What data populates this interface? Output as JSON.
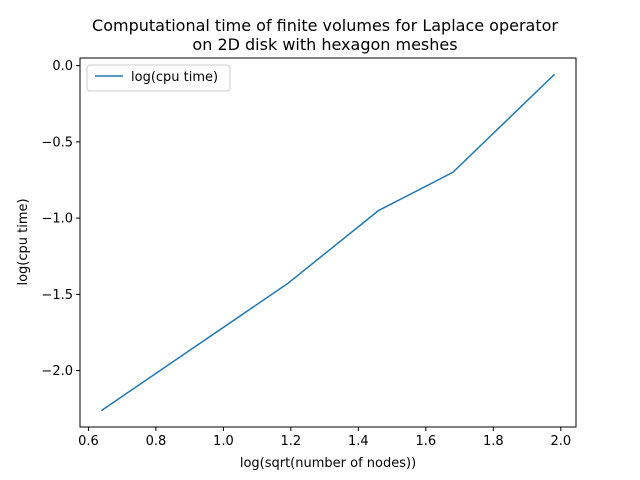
{
  "chart_data": {
    "type": "line",
    "title_line1": "Computational time of finite volumes for Laplace operator",
    "title_line2": "on 2D disk with hexagon meshes",
    "xlabel": "log(sqrt(number of nodes))",
    "ylabel": "log(cpu time)",
    "xlim": [
      0.6,
      2.0
    ],
    "ylim": [
      -2.5,
      0.0
    ],
    "xticks": [
      0.6,
      0.8,
      1.0,
      1.2,
      1.4,
      1.6,
      1.8,
      2.0
    ],
    "xtick_labels": [
      "0.6",
      "0.8",
      "1.0",
      "1.2",
      "1.4",
      "1.6",
      "1.8",
      "2.0"
    ],
    "yticks": [
      -2.0,
      -1.5,
      -1.0,
      -0.5,
      0.0
    ],
    "ytick_labels": [
      "−2.0",
      "−1.5",
      "−1.0",
      "−0.5",
      "0.0"
    ],
    "grid": false,
    "legend_position": "upper-left",
    "series": [
      {
        "name": "log(cpu time)",
        "color": "#1f77b4",
        "x": [
          0.64,
          1.19,
          1.46,
          1.68,
          1.98
        ],
        "y": [
          -2.26,
          -1.43,
          -0.95,
          -0.7,
          -0.06
        ]
      }
    ]
  }
}
